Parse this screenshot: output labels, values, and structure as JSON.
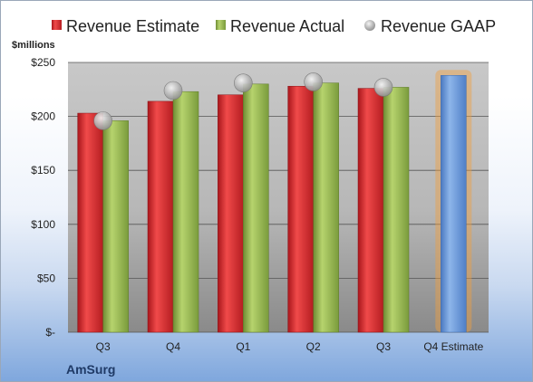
{
  "chart_data": {
    "type": "bar",
    "categories": [
      "Q3",
      "Q4",
      "Q1",
      "Q2",
      "Q3",
      "Q4 Estimate"
    ],
    "series": [
      {
        "name": "Revenue Estimate",
        "values": [
          203,
          214,
          220,
          228,
          226,
          null
        ],
        "color": "#d62728"
      },
      {
        "name": "Revenue Actual",
        "values": [
          196,
          223,
          230,
          231,
          227,
          null
        ],
        "color": "#8fb04a"
      },
      {
        "name": "Revenue GAAP",
        "values": [
          196,
          224,
          231,
          232,
          227,
          null
        ],
        "color": "#b8b8b8",
        "marker": "circle"
      }
    ],
    "estimate_bar": {
      "category": "Q4 Estimate",
      "value": 238,
      "color": "#5b8fd6",
      "highlight": "#f0a040"
    },
    "yticks": [
      "$-",
      "$50",
      "$100",
      "$150",
      "$200",
      "$250"
    ],
    "ytick_values": [
      0,
      50,
      100,
      150,
      200,
      250
    ],
    "ylim": [
      0,
      250
    ],
    "ylabel": "$millions",
    "grid": true,
    "legend": "top"
  },
  "company_label": "AmSurg"
}
